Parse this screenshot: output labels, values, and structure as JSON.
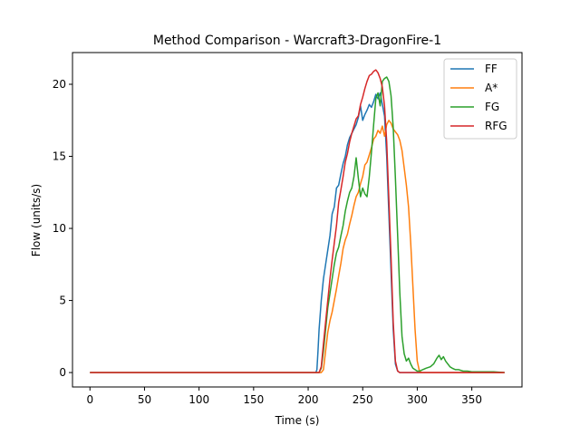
{
  "chart_data": {
    "type": "line",
    "title": "Method Comparison - Warcraft3-DragonFire-1",
    "xlabel": "Time (s)",
    "ylabel": "Flow (units/s)",
    "xlim": [
      -16,
      396
    ],
    "ylim": [
      -1,
      22.2
    ],
    "xticks": [
      0,
      50,
      100,
      150,
      200,
      250,
      300,
      350
    ],
    "yticks": [
      0,
      5,
      10,
      15,
      20
    ],
    "legend_position": "top-right",
    "series": [
      {
        "name": "FF",
        "color": "#1f77b4",
        "points": [
          [
            0,
            0
          ],
          [
            207,
            0
          ],
          [
            208,
            0.2
          ],
          [
            209,
            1.5
          ],
          [
            210,
            3
          ],
          [
            212,
            5
          ],
          [
            214,
            6.5
          ],
          [
            216,
            7.5
          ],
          [
            218,
            8.5
          ],
          [
            220,
            9.5
          ],
          [
            222,
            11
          ],
          [
            224,
            11.5
          ],
          [
            226,
            12.8
          ],
          [
            228,
            13
          ],
          [
            230,
            13.8
          ],
          [
            232,
            14.5
          ],
          [
            234,
            15
          ],
          [
            236,
            15.8
          ],
          [
            238,
            16.3
          ],
          [
            240,
            16.6
          ],
          [
            242,
            16.9
          ],
          [
            244,
            17.2
          ],
          [
            246,
            17.7
          ],
          [
            248,
            18.5
          ],
          [
            250,
            17.5
          ],
          [
            252,
            17.9
          ],
          [
            254,
            18.2
          ],
          [
            256,
            18.6
          ],
          [
            258,
            18.4
          ],
          [
            260,
            18.8
          ],
          [
            262,
            19.3
          ],
          [
            264,
            19.0
          ],
          [
            266,
            19.4
          ],
          [
            268,
            18.6
          ],
          [
            270,
            17.8
          ],
          [
            272,
            15
          ],
          [
            274,
            11
          ],
          [
            276,
            7
          ],
          [
            278,
            3
          ],
          [
            280,
            0.6
          ],
          [
            282,
            0.1
          ],
          [
            284,
            0
          ],
          [
            380,
            0
          ]
        ]
      },
      {
        "name": "A*",
        "color": "#ff7f0e",
        "points": [
          [
            0,
            0
          ],
          [
            212,
            0
          ],
          [
            214,
            0.2
          ],
          [
            216,
            1.5
          ],
          [
            218,
            2.8
          ],
          [
            220,
            3.6
          ],
          [
            222,
            4.2
          ],
          [
            224,
            5
          ],
          [
            226,
            5.8
          ],
          [
            228,
            6.7
          ],
          [
            230,
            7.6
          ],
          [
            232,
            8.6
          ],
          [
            234,
            9.2
          ],
          [
            236,
            9.6
          ],
          [
            238,
            10.3
          ],
          [
            240,
            10.9
          ],
          [
            242,
            11.6
          ],
          [
            244,
            12.2
          ],
          [
            246,
            12.5
          ],
          [
            248,
            13.1
          ],
          [
            250,
            13.6
          ],
          [
            252,
            14.4
          ],
          [
            254,
            14.6
          ],
          [
            256,
            15.1
          ],
          [
            258,
            15.6
          ],
          [
            260,
            16.2
          ],
          [
            262,
            16.4
          ],
          [
            264,
            16.8
          ],
          [
            266,
            16.6
          ],
          [
            268,
            17.1
          ],
          [
            270,
            16.4
          ],
          [
            272,
            17.2
          ],
          [
            274,
            17.5
          ],
          [
            276,
            17.3
          ],
          [
            278,
            16.9
          ],
          [
            280,
            16.7
          ],
          [
            282,
            16.5
          ],
          [
            284,
            16.1
          ],
          [
            286,
            15.4
          ],
          [
            288,
            14.2
          ],
          [
            290,
            13.0
          ],
          [
            292,
            11.5
          ],
          [
            294,
            9.0
          ],
          [
            296,
            6.0
          ],
          [
            298,
            3.0
          ],
          [
            300,
            0.8
          ],
          [
            302,
            0.1
          ],
          [
            304,
            0
          ],
          [
            380,
            0
          ]
        ]
      },
      {
        "name": "FG",
        "color": "#2ca02c",
        "points": [
          [
            0,
            0
          ],
          [
            210,
            0
          ],
          [
            212,
            0.3
          ],
          [
            214,
            1.5
          ],
          [
            216,
            3
          ],
          [
            218,
            4.5
          ],
          [
            220,
            5.5
          ],
          [
            222,
            6.5
          ],
          [
            224,
            7.5
          ],
          [
            226,
            8.3
          ],
          [
            228,
            8.7
          ],
          [
            230,
            9.5
          ],
          [
            232,
            10.2
          ],
          [
            234,
            11.2
          ],
          [
            236,
            11.9
          ],
          [
            238,
            12.5
          ],
          [
            240,
            12.8
          ],
          [
            242,
            13.6
          ],
          [
            244,
            14.9
          ],
          [
            246,
            13.5
          ],
          [
            248,
            12.2
          ],
          [
            250,
            12.8
          ],
          [
            252,
            12.4
          ],
          [
            254,
            12.2
          ],
          [
            256,
            13.6
          ],
          [
            258,
            15.3
          ],
          [
            260,
            17.2
          ],
          [
            262,
            19.0
          ],
          [
            264,
            19.4
          ],
          [
            266,
            18.5
          ],
          [
            268,
            20.2
          ],
          [
            270,
            20.4
          ],
          [
            272,
            20.5
          ],
          [
            274,
            20.2
          ],
          [
            276,
            19.2
          ],
          [
            278,
            17.0
          ],
          [
            280,
            13.5
          ],
          [
            282,
            9.5
          ],
          [
            284,
            5.5
          ],
          [
            286,
            2.5
          ],
          [
            288,
            1.3
          ],
          [
            290,
            0.8
          ],
          [
            292,
            1.0
          ],
          [
            294,
            0.6
          ],
          [
            296,
            0.3
          ],
          [
            298,
            0.2
          ],
          [
            300,
            0.1
          ],
          [
            302,
            0.1
          ],
          [
            305,
            0.2
          ],
          [
            308,
            0.3
          ],
          [
            312,
            0.4
          ],
          [
            315,
            0.6
          ],
          [
            318,
            1.0
          ],
          [
            320,
            1.2
          ],
          [
            322,
            0.9
          ],
          [
            324,
            1.1
          ],
          [
            326,
            0.8
          ],
          [
            328,
            0.6
          ],
          [
            330,
            0.4
          ],
          [
            332,
            0.3
          ],
          [
            335,
            0.2
          ],
          [
            338,
            0.2
          ],
          [
            342,
            0.1
          ],
          [
            346,
            0.1
          ],
          [
            350,
            0.05
          ],
          [
            360,
            0.05
          ],
          [
            370,
            0.05
          ],
          [
            380,
            0
          ]
        ]
      },
      {
        "name": "RFG",
        "color": "#d62728",
        "points": [
          [
            0,
            0
          ],
          [
            210,
            0
          ],
          [
            212,
            0.4
          ],
          [
            214,
            2
          ],
          [
            216,
            3.5
          ],
          [
            218,
            5
          ],
          [
            220,
            6.5
          ],
          [
            222,
            7.8
          ],
          [
            224,
            9
          ],
          [
            226,
            10.2
          ],
          [
            228,
            11.8
          ],
          [
            230,
            12.7
          ],
          [
            232,
            13.6
          ],
          [
            234,
            14.6
          ],
          [
            236,
            15.2
          ],
          [
            238,
            16.0
          ],
          [
            240,
            16.6
          ],
          [
            242,
            17.1
          ],
          [
            244,
            17.6
          ],
          [
            246,
            17.8
          ],
          [
            248,
            18.6
          ],
          [
            250,
            19.1
          ],
          [
            252,
            19.7
          ],
          [
            254,
            20.2
          ],
          [
            256,
            20.6
          ],
          [
            258,
            20.7
          ],
          [
            260,
            20.9
          ],
          [
            262,
            21.0
          ],
          [
            264,
            20.8
          ],
          [
            266,
            20.4
          ],
          [
            268,
            19.8
          ],
          [
            270,
            18.5
          ],
          [
            272,
            16.0
          ],
          [
            274,
            12.0
          ],
          [
            276,
            8.0
          ],
          [
            278,
            3.5
          ],
          [
            280,
            0.8
          ],
          [
            282,
            0.1
          ],
          [
            284,
            0
          ],
          [
            380,
            0
          ]
        ]
      }
    ]
  }
}
